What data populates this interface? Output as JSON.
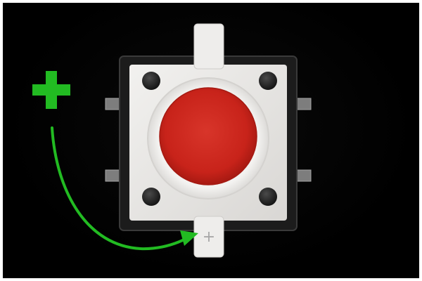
{
  "scene": {
    "subject": "tactile-push-button",
    "annotation_plus": "+",
    "leg_marking": "+"
  },
  "colors": {
    "background": "#000000",
    "frame": "#ffffff",
    "button_cap": "#c8231a",
    "housing": "#e9e7e4",
    "body": "#1a1a1a",
    "annotation": "#22bb22",
    "pins": "#8a8a8a"
  }
}
